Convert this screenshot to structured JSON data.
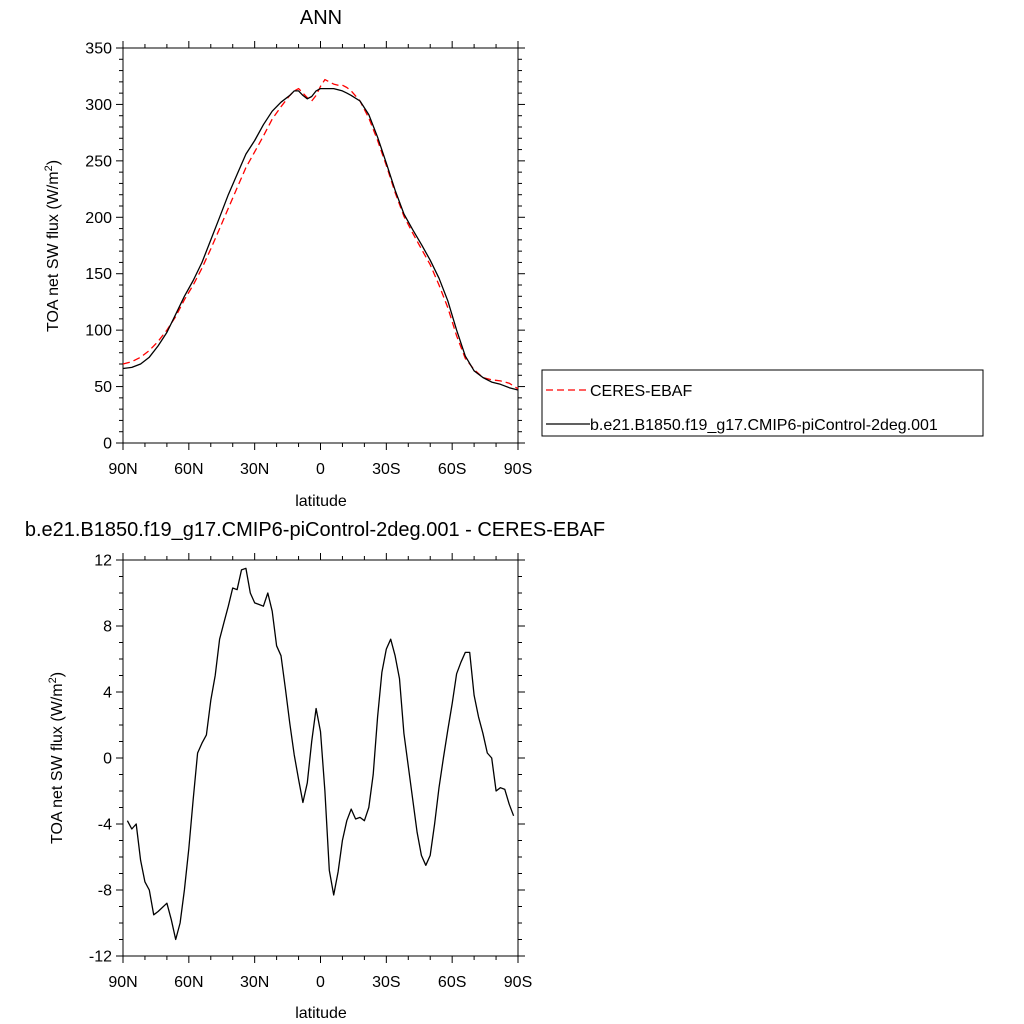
{
  "chart_data": [
    {
      "type": "line",
      "title": "ANN",
      "xlabel": "latitude",
      "ylabel": "TOA net SW flux (W/m",
      "ylabel_sup": "2",
      "ylabel_end": ")",
      "xlim": [
        90,
        -90
      ],
      "ylim": [
        0,
        350
      ],
      "yticks": [
        0,
        50,
        100,
        150,
        200,
        250,
        300,
        350
      ],
      "xticks": [
        90,
        60,
        30,
        0,
        -30,
        -60,
        -90
      ],
      "xtick_labels": [
        "90N",
        "60N",
        "30N",
        "0",
        "30S",
        "60S",
        "90S"
      ],
      "legend_position": "right",
      "series": [
        {
          "name": "CERES-EBAF",
          "color": "#ff0000",
          "dash": "dashed",
          "x": [
            90,
            86,
            82,
            78,
            74,
            70,
            66,
            62,
            58,
            54,
            50,
            46,
            42,
            38,
            34,
            30,
            26,
            22,
            18,
            14,
            12,
            10,
            8,
            6,
            4,
            2,
            0,
            -2,
            -4,
            -6,
            -8,
            -10,
            -12,
            -14,
            -18,
            -22,
            -26,
            -30,
            -34,
            -38,
            -42,
            -46,
            -50,
            -54,
            -58,
            -62,
            -66,
            -70,
            -74,
            -78,
            -82,
            -86,
            -90
          ],
          "y": [
            70,
            72,
            76,
            82,
            90,
            100,
            112,
            127,
            140,
            155,
            172,
            190,
            208,
            226,
            244,
            258,
            272,
            287,
            298,
            308,
            312,
            314,
            310,
            306,
            303,
            308,
            316,
            322,
            320,
            318,
            317,
            317,
            315,
            312,
            303,
            288,
            268,
            246,
            222,
            201,
            186,
            172,
            158,
            140,
            120,
            95,
            75,
            65,
            58,
            56,
            55,
            53,
            48
          ]
        },
        {
          "name": "b.e21.B1850.f19_g17.CMIP6-piControl-2deg.001",
          "color": "#000000",
          "dash": "solid",
          "x": [
            90,
            86,
            82,
            78,
            74,
            70,
            66,
            62,
            58,
            54,
            50,
            46,
            42,
            38,
            34,
            30,
            26,
            22,
            18,
            14,
            12,
            10,
            8,
            6,
            4,
            2,
            0,
            -2,
            -4,
            -6,
            -8,
            -10,
            -12,
            -14,
            -18,
            -22,
            -26,
            -30,
            -34,
            -38,
            -42,
            -46,
            -50,
            -54,
            -58,
            -62,
            -66,
            -70,
            -74,
            -78,
            -82,
            -86,
            -90
          ],
          "y": [
            66,
            67,
            70,
            76,
            86,
            98,
            114,
            130,
            144,
            160,
            180,
            200,
            220,
            238,
            256,
            268,
            282,
            294,
            302,
            308,
            312,
            312,
            308,
            305,
            307,
            312,
            314,
            314,
            314,
            314,
            313,
            312,
            310,
            308,
            303,
            291,
            271,
            248,
            224,
            203,
            189,
            176,
            162,
            146,
            126,
            100,
            77,
            64,
            58,
            54,
            52,
            49,
            47
          ]
        }
      ]
    },
    {
      "type": "line",
      "title": "b.e21.B1850.f19_g17.CMIP6-piControl-2deg.001 - CERES-EBAF",
      "xlabel": "latitude",
      "ylabel": "TOA net SW flux (W/m",
      "ylabel_sup": "2",
      "ylabel_end": ")",
      "xlim": [
        90,
        -90
      ],
      "ylim": [
        -12,
        12
      ],
      "yticks": [
        -12,
        -8,
        -4,
        0,
        4,
        8,
        12
      ],
      "xticks": [
        90,
        60,
        30,
        0,
        -30,
        -60,
        -90
      ],
      "xtick_labels": [
        "90N",
        "60N",
        "30N",
        "0",
        "30S",
        "60S",
        "90S"
      ],
      "series": [
        {
          "color": "#000000",
          "dash": "solid",
          "x": [
            88,
            86,
            84,
            82,
            80,
            78,
            76,
            74,
            70,
            68,
            66,
            64,
            62,
            60,
            58,
            56,
            54,
            52,
            50,
            48,
            46,
            44,
            42,
            40,
            38,
            36,
            34,
            32,
            30,
            28,
            26,
            24,
            22,
            20,
            18,
            16,
            14,
            12,
            10,
            8,
            6,
            4,
            2,
            0,
            -2,
            -4,
            -6,
            -8,
            -10,
            -12,
            -14,
            -16,
            -18,
            -20,
            -22,
            -24,
            -26,
            -28,
            -30,
            -32,
            -34,
            -36,
            -38,
            -40,
            -42,
            -44,
            -46,
            -48,
            -50,
            -52,
            -54,
            -56,
            -58,
            -60,
            -62,
            -64,
            -66,
            -68,
            -70,
            -72,
            -74,
            -76,
            -78,
            -80,
            -82,
            -84,
            -86,
            -88
          ],
          "y": [
            -3.8,
            -4.3,
            -4.0,
            -6.2,
            -7.5,
            -8.0,
            -9.5,
            -9.3,
            -8.8,
            -9.8,
            -11.0,
            -10.0,
            -8.0,
            -5.5,
            -2.5,
            0.3,
            0.9,
            1.4,
            3.5,
            5.0,
            7.2,
            8.2,
            9.2,
            10.3,
            10.2,
            11.4,
            11.5,
            10.0,
            9.4,
            9.3,
            9.2,
            10.0,
            8.9,
            6.8,
            6.2,
            4.2,
            2.1,
            0.2,
            -1.3,
            -2.7,
            -1.5,
            1.0,
            3.0,
            1.6,
            -2.0,
            -6.8,
            -8.3,
            -6.9,
            -5.0,
            -3.8,
            -3.1,
            -3.7,
            -3.6,
            -3.8,
            -3.0,
            -1.0,
            2.5,
            5.2,
            6.6,
            7.2,
            6.2,
            4.8,
            1.5,
            -0.5,
            -2.5,
            -4.5,
            -5.9,
            -6.5,
            -5.9,
            -4.0,
            -1.8,
            0.0,
            1.7,
            3.3,
            5.1,
            5.8,
            6.4,
            6.4,
            3.8,
            2.5,
            1.5,
            0.3,
            0.0,
            -2.0,
            -1.8,
            -1.9,
            -2.8,
            -3.5
          ]
        }
      ]
    }
  ]
}
